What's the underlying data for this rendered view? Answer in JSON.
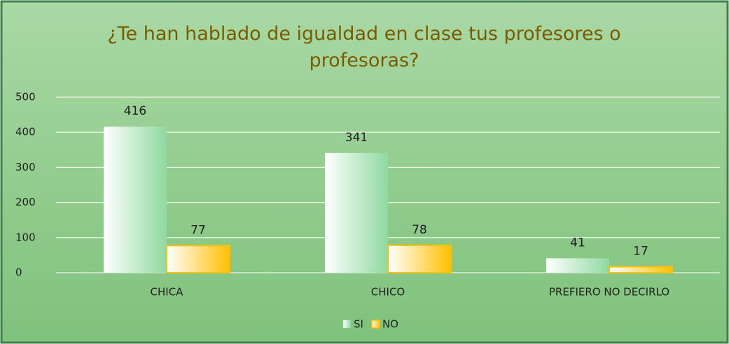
{
  "chart_data": {
    "type": "bar",
    "title": "¿Te han hablado de igualdad en clase tus profesores o profesoras?",
    "categories": [
      "CHICA",
      "CHICO",
      "PREFIERO NO DECIRLO"
    ],
    "series": [
      {
        "name": "SI",
        "color": "#8fd9a0",
        "values": [
          416,
          341,
          41
        ]
      },
      {
        "name": "NO",
        "color": "#ffc000",
        "values": [
          77,
          78,
          17
        ]
      }
    ],
    "ylim": [
      0,
      500
    ],
    "yticks": [
      0,
      100,
      200,
      300,
      400,
      500
    ],
    "grid": true,
    "legend": "bottom"
  }
}
